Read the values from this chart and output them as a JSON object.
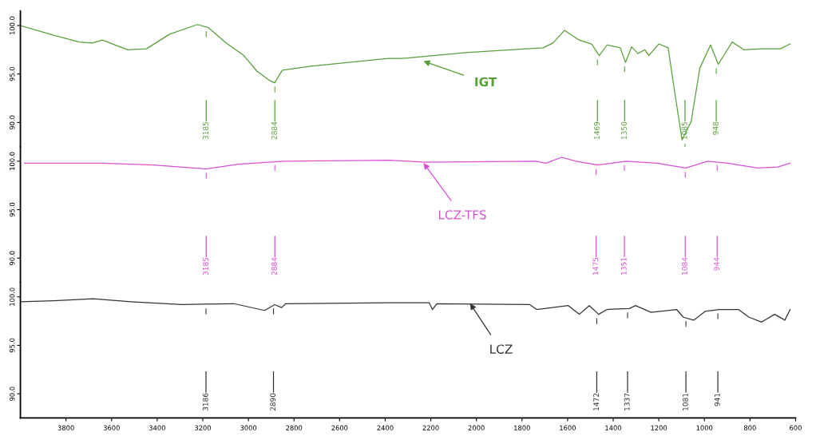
{
  "chart_data": [
    {
      "type": "line",
      "xlim": [
        4000,
        600
      ],
      "ylim": [
        87.5,
        101.5
      ],
      "yticks": [
        {
          "value": 90,
          "label": "90.0"
        },
        {
          "value": 95,
          "label": "95.0"
        },
        {
          "value": 100,
          "label": "100.0"
        }
      ],
      "tick_labels": "y",
      "grid": false,
      "legend": false,
      "series": [
        {
          "name": "IGT",
          "color": "#5a9e3a",
          "x": [
            4000,
            3854,
            3742,
            3685,
            3641,
            3529,
            3447,
            3346,
            3224,
            3176,
            3098,
            3020,
            2963,
            2905,
            2885,
            2851,
            2725,
            2386,
            2329,
            2047,
            1708,
            1664,
            1614,
            1549,
            1495,
            1461,
            1427,
            1369,
            1346,
            1319,
            1292,
            1261,
            1244,
            1200,
            1159,
            1132,
            1098,
            1058,
            1020,
            973,
            939,
            878,
            827,
            749,
            668,
            624
          ],
          "values": [
            100.0,
            99.0,
            98.3,
            98.2,
            98.5,
            97.5,
            97.6,
            99.1,
            100.1,
            99.8,
            98.2,
            96.9,
            95.3,
            94.3,
            94.1,
            95.4,
            95.8,
            96.6,
            96.6,
            97.2,
            97.7,
            98.2,
            99.5,
            98.5,
            98.1,
            96.9,
            98.0,
            97.7,
            96.2,
            97.8,
            97.1,
            97.5,
            96.9,
            98.1,
            97.7,
            93.4,
            88.2,
            90.1,
            95.6,
            98.0,
            96.0,
            98.3,
            97.5,
            97.6,
            97.6,
            98.1
          ]
        }
      ],
      "ref_lines": [
        {
          "axis": "x",
          "value": 3185,
          "label": "3185"
        },
        {
          "axis": "x",
          "value": 2884,
          "label": "2884"
        },
        {
          "axis": "x",
          "value": 1469,
          "label": "1469"
        },
        {
          "axis": "x",
          "value": 1350,
          "label": "1350"
        },
        {
          "axis": "x",
          "value": 1085,
          "label": "1085"
        },
        {
          "axis": "x",
          "value": 948,
          "label": "948"
        }
      ]
    },
    {
      "type": "line",
      "xlim": [
        4000,
        600
      ],
      "ylim": [
        87.5,
        101.5
      ],
      "yticks": [
        {
          "value": 90,
          "label": "90.0"
        },
        {
          "value": 95,
          "label": "95.0"
        },
        {
          "value": 100,
          "label": "100.0"
        }
      ],
      "tick_labels": "y",
      "grid": false,
      "legend": false,
      "series": [
        {
          "name": "LCZ-TFS",
          "color": "#d94fd6",
          "x": [
            3983,
            3640,
            3417,
            3187,
            3044,
            2844,
            2380,
            2224,
            1739,
            1695,
            1627,
            1563,
            1468,
            1342,
            1210,
            1081,
            986,
            898,
            766,
            678,
            624
          ],
          "values": [
            99.8,
            99.8,
            99.6,
            99.2,
            99.7,
            100.0,
            100.1,
            99.9,
            100.0,
            99.8,
            100.4,
            100.0,
            99.6,
            100.0,
            99.8,
            99.3,
            100.0,
            99.8,
            99.3,
            99.4,
            99.8
          ]
        }
      ],
      "ref_lines": [
        {
          "axis": "x",
          "value": 3185,
          "label": "3185"
        },
        {
          "axis": "x",
          "value": 2884,
          "label": "2884"
        },
        {
          "axis": "x",
          "value": 1475,
          "label": "1475"
        },
        {
          "axis": "x",
          "value": 1351,
          "label": "1351"
        },
        {
          "axis": "x",
          "value": 1084,
          "label": "1084"
        },
        {
          "axis": "x",
          "value": 944,
          "label": "944"
        }
      ]
    },
    {
      "type": "line",
      "xlim": [
        4000,
        600
      ],
      "ylim": [
        87.5,
        101.5
      ],
      "xticks": [
        3800,
        3600,
        3400,
        3200,
        3000,
        2800,
        2600,
        2400,
        2200,
        2000,
        1800,
        1600,
        1400,
        1200,
        1000,
        800,
        600
      ],
      "yticks": [
        {
          "value": 90,
          "label": "90.0"
        },
        {
          "value": 95,
          "label": "95.0"
        },
        {
          "value": 100,
          "label": "100.0"
        }
      ],
      "grid": false,
      "legend": false,
      "series": [
        {
          "name": "LCZ",
          "color": "#333333",
          "x": [
            4000,
            3854,
            3681,
            3515,
            3292,
            3064,
            2929,
            2885,
            2854,
            2837,
            2386,
            2207,
            2193,
            2173,
            1766,
            1736,
            1597,
            1549,
            1505,
            1464,
            1427,
            1329,
            1302,
            1234,
            1122,
            1092,
            1047,
            997,
            936,
            851,
            804,
            749,
            692,
            647,
            624
          ],
          "values": [
            99.5,
            99.6,
            99.8,
            99.5,
            99.2,
            99.3,
            98.6,
            99.2,
            98.9,
            99.3,
            99.4,
            99.4,
            98.7,
            99.3,
            99.2,
            98.7,
            99.1,
            98.2,
            99.1,
            98.2,
            98.7,
            98.8,
            99.1,
            98.4,
            98.7,
            97.9,
            97.6,
            98.5,
            98.7,
            98.7,
            97.9,
            97.4,
            98.2,
            97.6,
            98.7
          ]
        }
      ],
      "ref_lines": [
        {
          "axis": "x",
          "value": 3186,
          "label": "3186"
        },
        {
          "axis": "x",
          "value": 2890,
          "label": "2890"
        },
        {
          "axis": "x",
          "value": 1472,
          "label": "1472"
        },
        {
          "axis": "x",
          "value": 1337,
          "label": "1337"
        },
        {
          "axis": "x",
          "value": 1081,
          "label": "1081"
        },
        {
          "axis": "x",
          "value": 941,
          "label": "941"
        }
      ]
    }
  ]
}
